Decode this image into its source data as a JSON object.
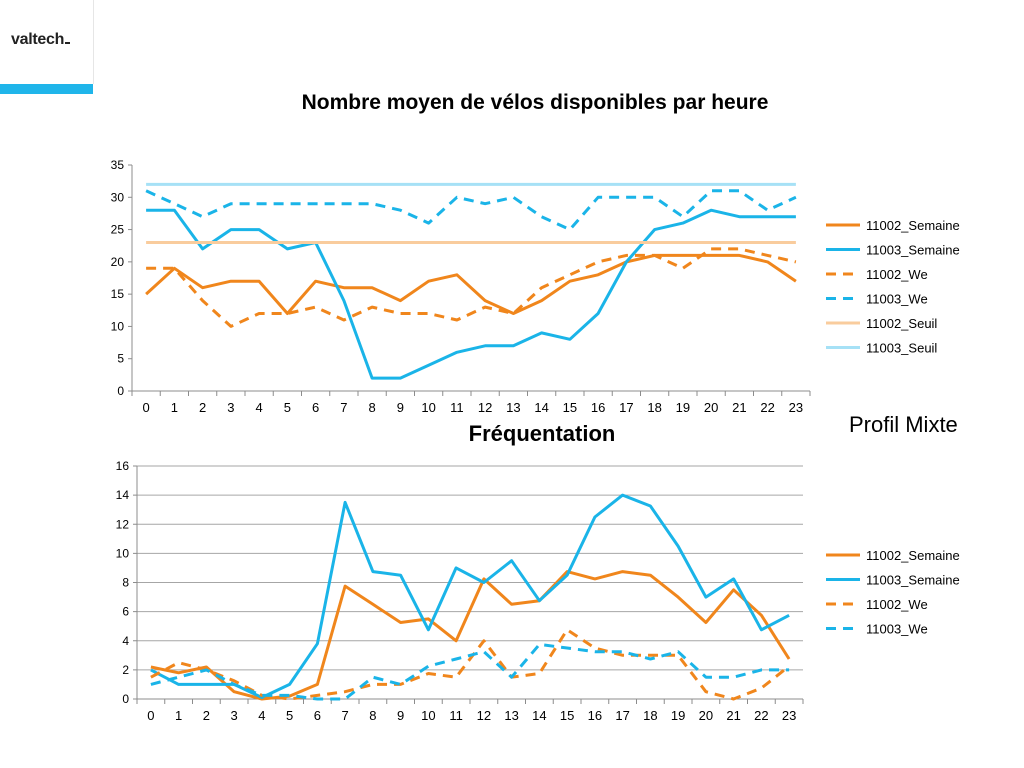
{
  "brand": {
    "logo_text": "valtech",
    "accent_color": "#1fb5ea"
  },
  "side_label": "Profil Mixte",
  "chart_data": [
    {
      "type": "line",
      "title": "Nombre moyen de vélos disponibles par heure",
      "xlabel": "",
      "ylabel": "",
      "x": [
        0,
        1,
        2,
        3,
        4,
        5,
        6,
        7,
        8,
        9,
        10,
        11,
        12,
        13,
        14,
        15,
        16,
        17,
        18,
        19,
        20,
        21,
        22,
        23
      ],
      "ylim": [
        0,
        35
      ],
      "yticks": [
        0,
        5,
        10,
        15,
        20,
        25,
        30,
        35
      ],
      "grid": false,
      "legend_position": "right",
      "series": [
        {
          "name": "11002_Semaine",
          "color": "#f0861c",
          "dash": "solid",
          "values": [
            15,
            19,
            16,
            17,
            17,
            12,
            17,
            16,
            16,
            14,
            17,
            18,
            14,
            12,
            14,
            17,
            18,
            20,
            21,
            21,
            21,
            21,
            20,
            17
          ]
        },
        {
          "name": "11003_Semaine",
          "color": "#1ab4e8",
          "dash": "solid",
          "values": [
            28,
            28,
            22,
            25,
            25,
            22,
            23,
            14,
            2,
            2,
            4,
            6,
            7,
            7,
            9,
            8,
            12,
            20,
            25,
            26,
            28,
            27,
            27,
            27
          ]
        },
        {
          "name": "11002_We",
          "color": "#f0861c",
          "dash": "dashed",
          "values": [
            19,
            19,
            14,
            10,
            12,
            12,
            13,
            11,
            13,
            12,
            12,
            11,
            13,
            12,
            16,
            18,
            20,
            21,
            21,
            19,
            22,
            22,
            21,
            20
          ]
        },
        {
          "name": "11003_We",
          "color": "#1ab4e8",
          "dash": "dashed",
          "values": [
            31,
            29,
            27,
            29,
            29,
            29,
            29,
            29,
            29,
            28,
            26,
            30,
            29,
            30,
            27,
            25,
            30,
            30,
            30,
            27,
            31,
            31,
            28,
            30
          ]
        },
        {
          "name": "11002_Seuil",
          "color": "#f9cc9d",
          "dash": "solid",
          "values": [
            23,
            23,
            23,
            23,
            23,
            23,
            23,
            23,
            23,
            23,
            23,
            23,
            23,
            23,
            23,
            23,
            23,
            23,
            23,
            23,
            23,
            23,
            23,
            23
          ]
        },
        {
          "name": "11003_Seuil",
          "color": "#a6e1f6",
          "dash": "solid",
          "values": [
            32,
            32,
            32,
            32,
            32,
            32,
            32,
            32,
            32,
            32,
            32,
            32,
            32,
            32,
            32,
            32,
            32,
            32,
            32,
            32,
            32,
            32,
            32,
            32
          ]
        }
      ]
    },
    {
      "type": "line",
      "title": "Fréquentation",
      "xlabel": "",
      "ylabel": "",
      "x": [
        0,
        1,
        2,
        3,
        4,
        5,
        6,
        7,
        8,
        9,
        10,
        11,
        12,
        13,
        14,
        15,
        16,
        17,
        18,
        19,
        20,
        21,
        22,
        23
      ],
      "ylim": [
        0,
        16
      ],
      "yticks": [
        0,
        2,
        4,
        6,
        8,
        10,
        12,
        14,
        16
      ],
      "grid": true,
      "legend_position": "right",
      "series": [
        {
          "name": "11002_Semaine",
          "color": "#f0861c",
          "dash": "solid",
          "values": [
            2.2,
            1.8,
            2.2,
            0.5,
            0.0,
            0.2,
            1.0,
            7.75,
            6.5,
            5.25,
            5.5,
            4.0,
            8.25,
            6.5,
            6.75,
            8.75,
            8.25,
            8.75,
            8.5,
            7.0,
            5.25,
            7.5,
            5.75,
            2.75
          ]
        },
        {
          "name": "11003_Semaine",
          "color": "#1ab4e8",
          "dash": "solid",
          "values": [
            2.0,
            1.0,
            1.0,
            1.0,
            0.1,
            1.0,
            3.8,
            13.5,
            8.75,
            8.5,
            4.75,
            9.0,
            8.0,
            9.5,
            6.75,
            8.5,
            12.5,
            14.0,
            13.25,
            10.5,
            7.0,
            8.25,
            4.75,
            5.75
          ]
        },
        {
          "name": "11002_We",
          "color": "#f0861c",
          "dash": "dashed",
          "values": [
            1.5,
            2.5,
            2.0,
            1.25,
            0.25,
            0.0,
            0.25,
            0.5,
            1.0,
            1.0,
            1.75,
            1.5,
            4.0,
            1.5,
            1.75,
            4.75,
            3.5,
            3.0,
            3.0,
            3.0,
            0.5,
            0.0,
            0.75,
            2.25
          ]
        },
        {
          "name": "11003_We",
          "color": "#1ab4e8",
          "dash": "dashed",
          "values": [
            1.0,
            1.5,
            2.0,
            1.0,
            0.25,
            0.25,
            0.0,
            0.0,
            1.5,
            1.0,
            2.25,
            2.75,
            3.25,
            1.5,
            3.75,
            3.5,
            3.25,
            3.25,
            2.75,
            3.25,
            1.5,
            1.5,
            2.0,
            2.0
          ]
        }
      ]
    }
  ]
}
